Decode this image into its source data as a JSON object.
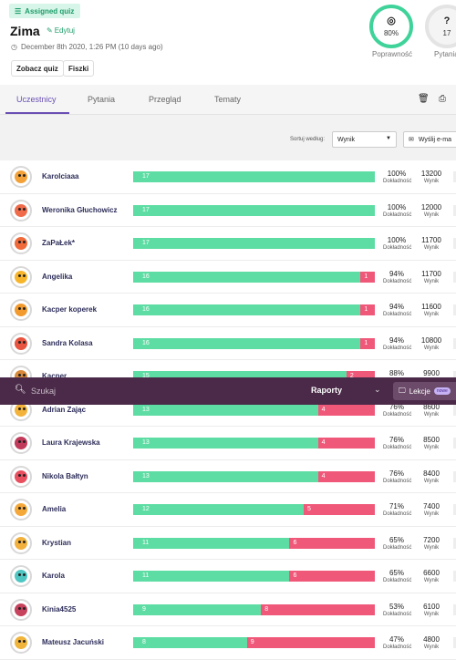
{
  "header": {
    "badge": "Assigned quiz",
    "title": "Zima",
    "edit": "Edytuj",
    "date": "December 8th 2020, 1:26 PM (10 days ago)",
    "buttons": [
      "Zobacz quiz",
      "Fiszki"
    ],
    "stats": [
      {
        "value": "80%",
        "label": "Poprawność",
        "icon": "target-icon"
      },
      {
        "value": "17",
        "label": "Pytania",
        "icon": "question-icon"
      }
    ]
  },
  "tabs": [
    "Uczestnicy",
    "Pytania",
    "Przegląd",
    "Tematy"
  ],
  "toolbar": {
    "sort_label": "Sortuj według:",
    "sort_value": "Wynik",
    "send_label": "Wyślij e-ma"
  },
  "column_labels": {
    "accuracy": "Dokładność",
    "score": "Wynik"
  },
  "rows": [
    {
      "name": "Karolciaaa",
      "correct": 17,
      "wrong": 0,
      "accuracy": "100%",
      "score": "13200",
      "color": "#f3a23a"
    },
    {
      "name": "Weronika Głuchowicz",
      "correct": 17,
      "wrong": 0,
      "accuracy": "100%",
      "score": "12000",
      "color": "#ef6b4a"
    },
    {
      "name": "ZaPaŁek*",
      "correct": 17,
      "wrong": 0,
      "accuracy": "100%",
      "score": "11700",
      "color": "#f06a3a"
    },
    {
      "name": "Angelika",
      "correct": 16,
      "wrong": 1,
      "accuracy": "94%",
      "score": "11700",
      "color": "#f7b52c"
    },
    {
      "name": "Kacper koperek",
      "correct": 16,
      "wrong": 1,
      "accuracy": "94%",
      "score": "11600",
      "color": "#f29a2e"
    },
    {
      "name": "Sandra Kolasa",
      "correct": 16,
      "wrong": 1,
      "accuracy": "94%",
      "score": "10800",
      "color": "#e8543f"
    },
    {
      "name": "Kacper",
      "correct": 15,
      "wrong": 2,
      "accuracy": "88%",
      "score": "9900",
      "color": "#d88a3a"
    },
    {
      "name": "Adrian Zając",
      "correct": 13,
      "wrong": 4,
      "accuracy": "76%",
      "score": "8600",
      "color": "#f3b23a"
    },
    {
      "name": "Laura Krajewska",
      "correct": 13,
      "wrong": 4,
      "accuracy": "76%",
      "score": "8500",
      "color": "#c23a5a"
    },
    {
      "name": "Nikola Bałtyn",
      "correct": 13,
      "wrong": 4,
      "accuracy": "76%",
      "score": "8400",
      "color": "#e84f5f"
    },
    {
      "name": "Amelia",
      "correct": 12,
      "wrong": 5,
      "accuracy": "71%",
      "score": "7400",
      "color": "#f5a83a"
    },
    {
      "name": "Krystian",
      "correct": 11,
      "wrong": 6,
      "accuracy": "65%",
      "score": "7200",
      "color": "#f2b13d"
    },
    {
      "name": "Karola",
      "correct": 11,
      "wrong": 6,
      "accuracy": "65%",
      "score": "6600",
      "color": "#4fc6c2"
    },
    {
      "name": "Kinia4525",
      "correct": 9,
      "wrong": 8,
      "accuracy": "53%",
      "score": "6100",
      "color": "#c7425c"
    },
    {
      "name": "Mateusz Jacuński",
      "correct": 8,
      "wrong": 9,
      "accuracy": "47%",
      "score": "4800",
      "color": "#f0b43a"
    }
  ],
  "bottom_bar": {
    "search_placeholder": "Szukaj",
    "reports": "Raporty",
    "lessons": "Lekcje",
    "new_badge": "nowe"
  },
  "colors": {
    "accent": "#6a4fb4",
    "correct": "#5ddda3",
    "wrong": "#f0587a",
    "green": "#1e9e6b",
    "bar_bg": "#4a2a48"
  }
}
